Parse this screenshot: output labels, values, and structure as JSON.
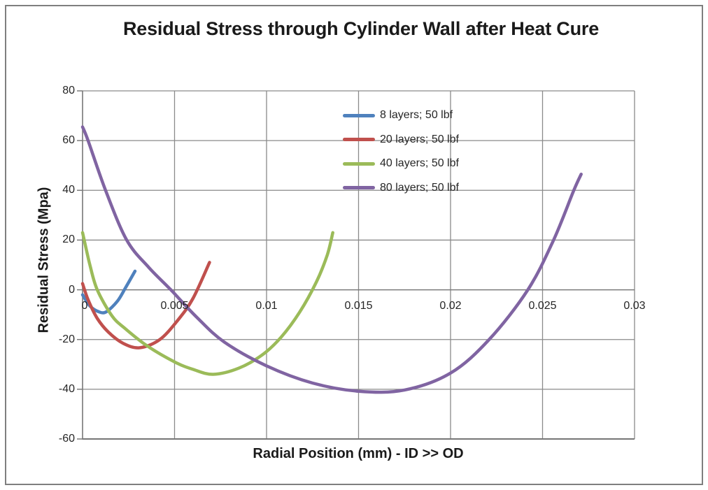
{
  "page": {
    "background": "#FFFFFF",
    "border_color": "#7F7F7F"
  },
  "chart_data": {
    "type": "line",
    "title": "Residual Stress through Cylinder Wall after Heat Cure",
    "xlabel": "Radial Position (mm) - ID >> OD",
    "ylabel": "Residual Stress (Mpa)",
    "xlim": [
      0,
      0.03
    ],
    "ylim": [
      -60,
      80
    ],
    "x_ticks": [
      0,
      0.005,
      0.01,
      0.015,
      0.02,
      0.025,
      0.03
    ],
    "x_tick_labels": [
      "0",
      "0.005",
      "0.01",
      "0.015",
      "0.02",
      "0.025",
      "0.03"
    ],
    "y_ticks": [
      80,
      60,
      40,
      20,
      0,
      -20,
      -40,
      -60
    ],
    "y_tick_labels": [
      "80",
      "60",
      "40",
      "20",
      "0",
      "-20",
      "-40",
      "-60"
    ],
    "grid": true,
    "legend_position": "inside-upper-center",
    "gridline_color": "#8A8A8A",
    "axis_color": "#7A7A7A",
    "series": [
      {
        "name": "8 layers; 50 lbf",
        "color": "#4F81BD",
        "points": [
          [
            0,
            -2
          ],
          [
            0.0004,
            -6.5
          ],
          [
            0.0009,
            -8.9
          ],
          [
            0.0013,
            -8.8
          ],
          [
            0.0019,
            -4.5
          ],
          [
            0.00235,
            1
          ],
          [
            0.00285,
            7.5
          ]
        ]
      },
      {
        "name": "20 layers; 50 lbf",
        "color": "#C0504D",
        "points": [
          [
            0,
            2.5
          ],
          [
            0.0003,
            -4
          ],
          [
            0.0008,
            -11.5
          ],
          [
            0.0014,
            -17
          ],
          [
            0.0022,
            -21.5
          ],
          [
            0.0031,
            -23.3
          ],
          [
            0.0042,
            -20
          ],
          [
            0.0052,
            -12
          ],
          [
            0.006,
            -3.5
          ],
          [
            0.0069,
            11
          ]
        ]
      },
      {
        "name": "40 layers; 50 lbf",
        "color": "#9BBB59",
        "points": [
          [
            0,
            23
          ],
          [
            0.0004,
            10
          ],
          [
            0.0008,
            0
          ],
          [
            0.0016,
            -10.5
          ],
          [
            0.0023,
            -15.5
          ],
          [
            0.0035,
            -22.5
          ],
          [
            0.005,
            -29
          ],
          [
            0.006,
            -32
          ],
          [
            0.0071,
            -34
          ],
          [
            0.0085,
            -31.5
          ],
          [
            0.0098,
            -26
          ],
          [
            0.0108,
            -19
          ],
          [
            0.0118,
            -9
          ],
          [
            0.0127,
            3
          ],
          [
            0.0133,
            14
          ],
          [
            0.0136,
            23
          ]
        ]
      },
      {
        "name": "80 layers; 50 lbf",
        "color": "#8064A2",
        "points": [
          [
            0,
            65.5
          ],
          [
            0.0003,
            60
          ],
          [
            0.00125,
            40
          ],
          [
            0.0024,
            20
          ],
          [
            0.0036,
            9
          ],
          [
            0.0048,
            0
          ],
          [
            0.0062,
            -11
          ],
          [
            0.0077,
            -21
          ],
          [
            0.01,
            -30.6
          ],
          [
            0.0125,
            -37.5
          ],
          [
            0.015,
            -40.8
          ],
          [
            0.0175,
            -40.3
          ],
          [
            0.02,
            -33.5
          ],
          [
            0.0221,
            -20
          ],
          [
            0.0242,
            0
          ],
          [
            0.0256,
            20
          ],
          [
            0.0267,
            40
          ],
          [
            0.0271,
            46.5
          ]
        ]
      }
    ]
  }
}
